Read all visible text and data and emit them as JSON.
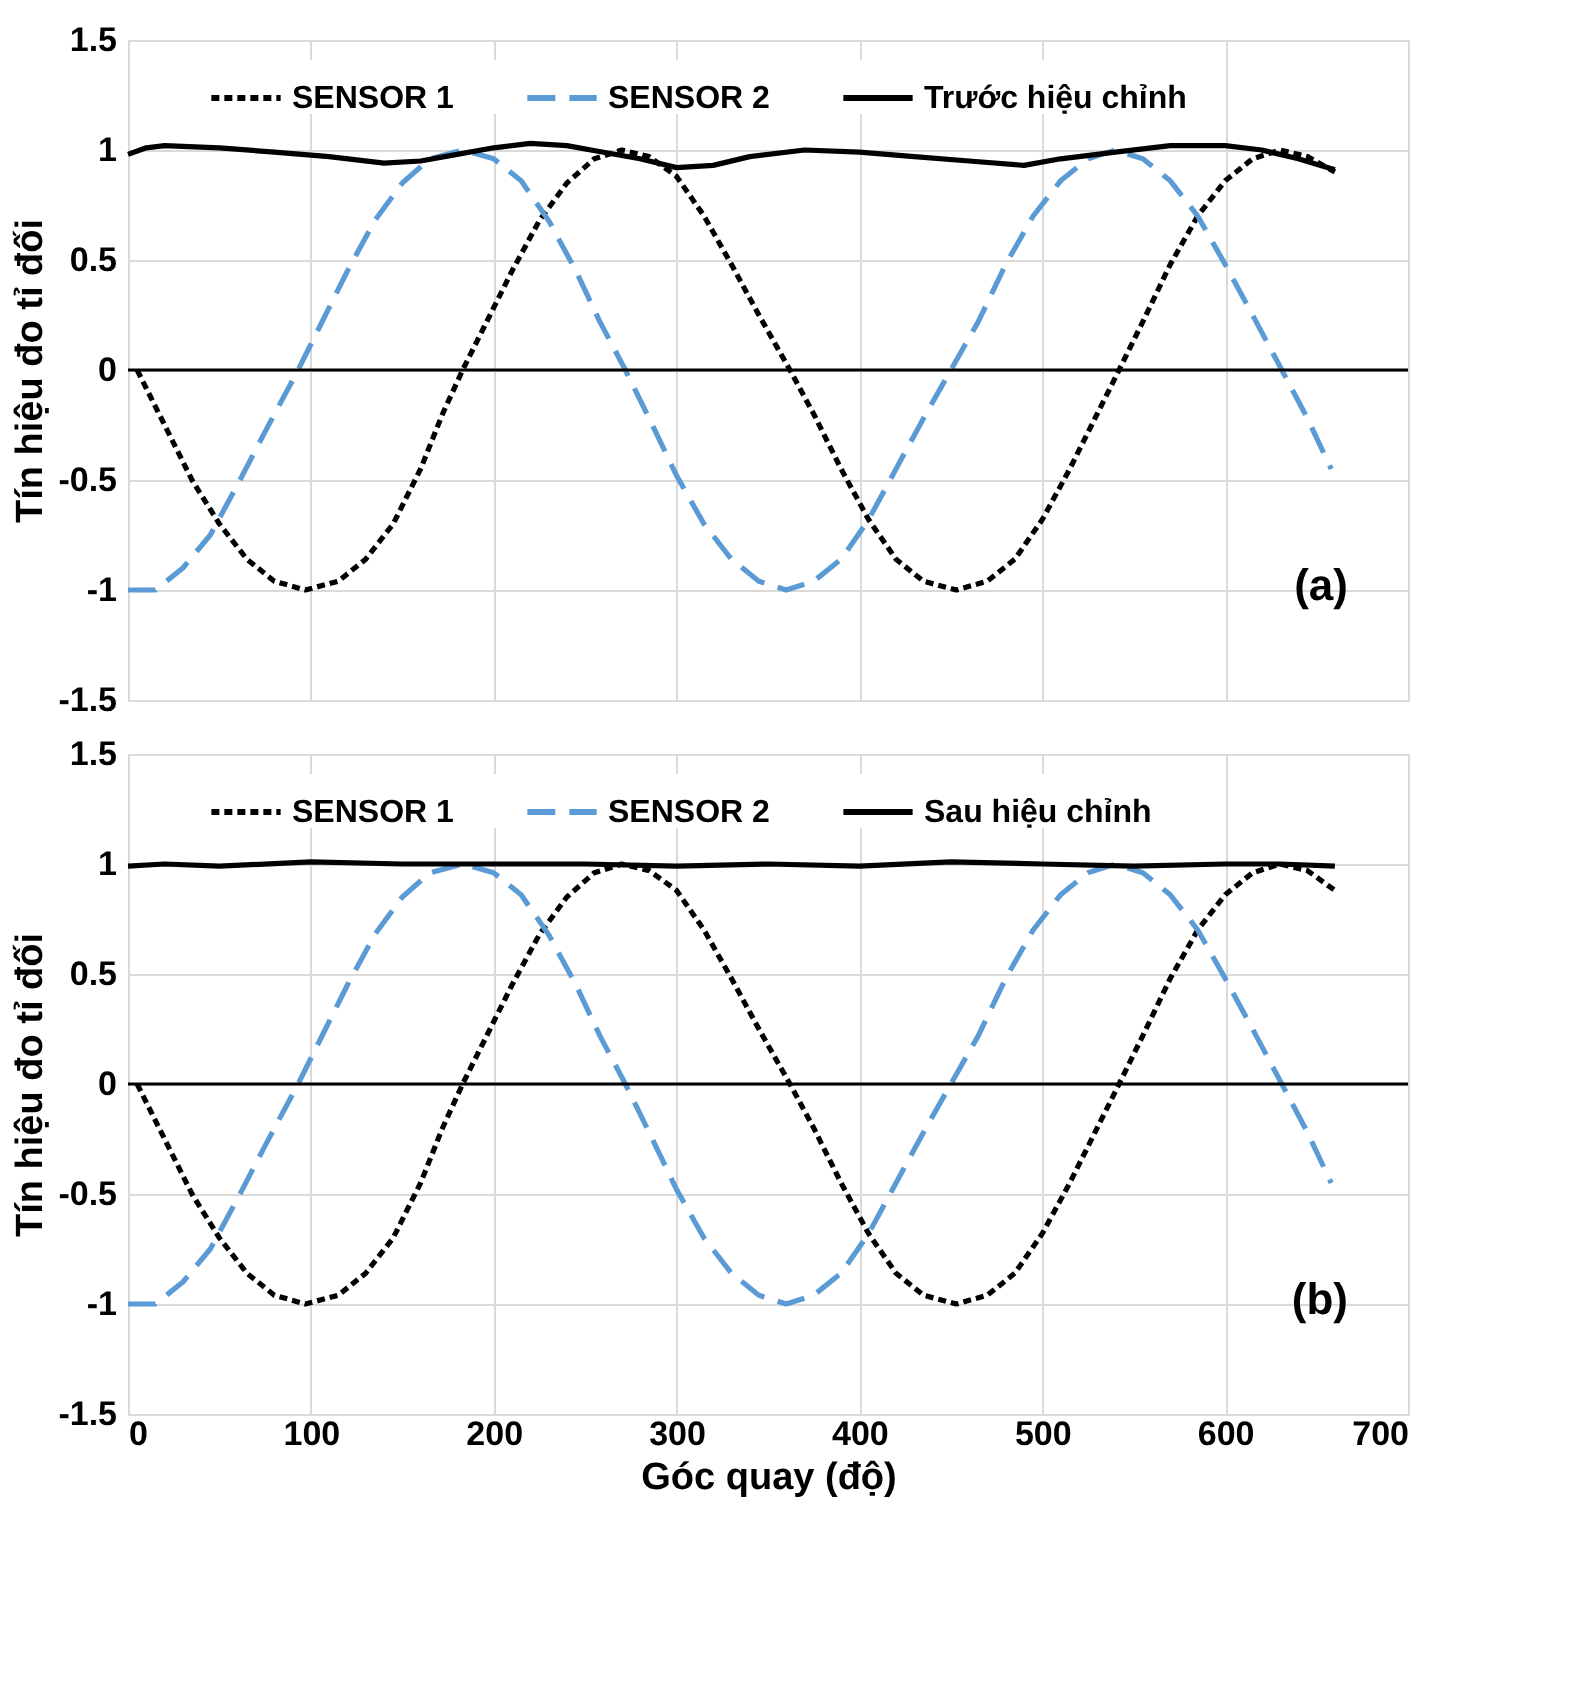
{
  "chart_data": [
    {
      "type": "line",
      "ylabel": "Tín hiệu đo tỉ đối",
      "xlim": [
        0,
        700
      ],
      "xticks": [
        0,
        100,
        200,
        300,
        400,
        500,
        600,
        700
      ],
      "ylim": [
        -1.5,
        1.5
      ],
      "yticks": [
        -1.5,
        -1,
        -0.5,
        0,
        0.5,
        1,
        1.5
      ],
      "tick_labels": "y",
      "grid": true,
      "legend": "top",
      "marker": "none",
      "annotations": [
        "(a)"
      ],
      "ref_lines": [
        {
          "axis": "y",
          "value": 0,
          "label": null,
          "color": "#000000",
          "line_style": "solid"
        }
      ],
      "series": [
        {
          "name": "SENSOR 1",
          "color": "#000000",
          "line_style": "dotted",
          "x": [
            5,
            20,
            35,
            50,
            65,
            80,
            97,
            115,
            130,
            145,
            160,
            172,
            183,
            195,
            210,
            225,
            240,
            255,
            270,
            285,
            300,
            315,
            330,
            345,
            362,
            375,
            390,
            405,
            420,
            435,
            453,
            470,
            485,
            500,
            515,
            530,
            542,
            555,
            570,
            585,
            600,
            615,
            630,
            645,
            660
          ],
          "values": [
            0,
            -0.25,
            -0.5,
            -0.7,
            -0.86,
            -0.96,
            -1,
            -0.96,
            -0.86,
            -0.7,
            -0.45,
            -0.2,
            0,
            0.2,
            0.45,
            0.68,
            0.85,
            0.96,
            1,
            0.97,
            0.88,
            0.7,
            0.48,
            0.25,
            0,
            -0.2,
            -0.45,
            -0.68,
            -0.86,
            -0.96,
            -1,
            -0.96,
            -0.86,
            -0.68,
            -0.45,
            -0.2,
            0,
            0.22,
            0.48,
            0.7,
            0.86,
            0.96,
            1,
            0.97,
            0.9
          ]
        },
        {
          "name": "SENSOR 2",
          "color": "#5b9bd5",
          "line_style": "dashed",
          "x": [
            0,
            15,
            30,
            45,
            60,
            75,
            93,
            105,
            120,
            135,
            150,
            165,
            183,
            200,
            215,
            230,
            245,
            258,
            272,
            285,
            300,
            315,
            330,
            345,
            360,
            375,
            390,
            405,
            420,
            435,
            450,
            465,
            480,
            495,
            510,
            525,
            540,
            555,
            570,
            585,
            600,
            615,
            631,
            645,
            658
          ],
          "values": [
            -1,
            -1,
            -0.9,
            -0.75,
            -0.52,
            -0.28,
            0,
            0.2,
            0.45,
            0.68,
            0.85,
            0.96,
            1,
            0.96,
            0.86,
            0.68,
            0.45,
            0.22,
            0,
            -0.22,
            -0.48,
            -0.7,
            -0.86,
            -0.96,
            -1,
            -0.96,
            -0.86,
            -0.68,
            -0.45,
            -0.22,
            0,
            0.22,
            0.48,
            0.7,
            0.86,
            0.96,
            1,
            0.96,
            0.86,
            0.7,
            0.48,
            0.25,
            0,
            -0.22,
            -0.45
          ]
        },
        {
          "name": "Trước hiệu chỉnh",
          "color": "#000000",
          "line_style": "solid",
          "x": [
            0,
            10,
            20,
            50,
            80,
            110,
            140,
            160,
            180,
            200,
            220,
            240,
            260,
            280,
            300,
            320,
            340,
            370,
            400,
            430,
            460,
            490,
            510,
            540,
            570,
            600,
            620,
            640,
            660
          ],
          "values": [
            0.98,
            1.01,
            1.02,
            1.01,
            0.99,
            0.97,
            0.94,
            0.95,
            0.98,
            1.01,
            1.03,
            1.02,
            0.99,
            0.96,
            0.92,
            0.93,
            0.97,
            1.0,
            0.99,
            0.97,
            0.95,
            0.93,
            0.96,
            0.99,
            1.02,
            1.02,
            1.0,
            0.96,
            0.91
          ]
        }
      ]
    },
    {
      "type": "line",
      "xlabel": "Góc quay (độ)",
      "ylabel": "Tín hiệu đo tỉ đối",
      "xlim": [
        0,
        700
      ],
      "xticks": [
        0,
        100,
        200,
        300,
        400,
        500,
        600,
        700
      ],
      "ylim": [
        -1.5,
        1.5
      ],
      "yticks": [
        -1.5,
        -1,
        -0.5,
        0,
        0.5,
        1,
        1.5
      ],
      "grid": true,
      "legend": "top",
      "marker": "none",
      "annotations": [
        "(b)"
      ],
      "ref_lines": [
        {
          "axis": "y",
          "value": 0,
          "label": null,
          "color": "#000000",
          "line_style": "solid"
        }
      ],
      "series": [
        {
          "name": "SENSOR 1",
          "color": "#000000",
          "line_style": "dotted",
          "x": [
            5,
            20,
            35,
            50,
            65,
            80,
            97,
            115,
            130,
            145,
            160,
            172,
            183,
            195,
            210,
            225,
            240,
            255,
            270,
            285,
            300,
            315,
            330,
            345,
            362,
            375,
            390,
            405,
            420,
            435,
            453,
            470,
            485,
            500,
            515,
            530,
            542,
            555,
            570,
            585,
            600,
            615,
            630,
            645,
            660
          ],
          "values": [
            0,
            -0.25,
            -0.5,
            -0.7,
            -0.86,
            -0.96,
            -1,
            -0.96,
            -0.86,
            -0.7,
            -0.45,
            -0.2,
            0,
            0.2,
            0.45,
            0.68,
            0.85,
            0.96,
            1,
            0.97,
            0.88,
            0.7,
            0.48,
            0.25,
            0,
            -0.2,
            -0.45,
            -0.68,
            -0.86,
            -0.96,
            -1,
            -0.96,
            -0.86,
            -0.68,
            -0.45,
            -0.2,
            0,
            0.22,
            0.48,
            0.7,
            0.86,
            0.96,
            1,
            0.97,
            0.88
          ]
        },
        {
          "name": "SENSOR 2",
          "color": "#5b9bd5",
          "line_style": "dashed",
          "x": [
            0,
            15,
            30,
            45,
            60,
            75,
            93,
            105,
            120,
            135,
            150,
            165,
            183,
            200,
            215,
            230,
            245,
            258,
            272,
            285,
            300,
            315,
            330,
            345,
            360,
            375,
            390,
            405,
            420,
            435,
            450,
            465,
            480,
            495,
            510,
            525,
            540,
            555,
            570,
            585,
            600,
            615,
            631,
            645,
            658
          ],
          "values": [
            -1,
            -1,
            -0.9,
            -0.75,
            -0.52,
            -0.28,
            0,
            0.2,
            0.45,
            0.68,
            0.85,
            0.96,
            1,
            0.96,
            0.86,
            0.68,
            0.45,
            0.22,
            0,
            -0.22,
            -0.48,
            -0.7,
            -0.86,
            -0.96,
            -1,
            -0.96,
            -0.86,
            -0.68,
            -0.45,
            -0.22,
            0,
            0.22,
            0.48,
            0.7,
            0.86,
            0.96,
            1,
            0.96,
            0.86,
            0.7,
            0.48,
            0.25,
            0,
            -0.22,
            -0.45
          ]
        },
        {
          "name": "Sau hiệu chỉnh",
          "color": "#000000",
          "line_style": "solid",
          "x": [
            0,
            20,
            50,
            100,
            150,
            200,
            250,
            300,
            350,
            400,
            450,
            500,
            550,
            600,
            630,
            660
          ],
          "values": [
            0.99,
            1.0,
            0.99,
            1.01,
            1.0,
            1.0,
            1.0,
            0.99,
            1.0,
            0.99,
            1.01,
            1.0,
            0.99,
            1.0,
            1.0,
            0.99
          ]
        }
      ]
    }
  ]
}
